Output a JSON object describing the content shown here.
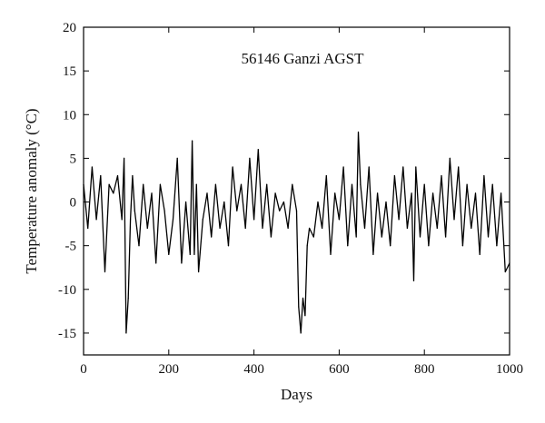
{
  "chart_data": {
    "type": "line",
    "title": "",
    "annotation": "56146 Ganzi AGST",
    "xlabel": "Days",
    "ylabel": "Temperature anomaly (°C)",
    "xlim": [
      0,
      1000
    ],
    "ylim": [
      -17.5,
      20
    ],
    "xticks": [
      0,
      200,
      400,
      600,
      800,
      1000
    ],
    "yticks": [
      -15,
      -10,
      -5,
      0,
      5,
      10,
      15,
      20
    ],
    "grid": false,
    "legend": "none",
    "line_color": "#000000",
    "series": [
      {
        "x": [
          0,
          10,
          20,
          30,
          40,
          50,
          60,
          70,
          80,
          90,
          95,
          100,
          105,
          110,
          115,
          120,
          130,
          140,
          150,
          160,
          170,
          180,
          190,
          200,
          210,
          220,
          230,
          240,
          250,
          255,
          260,
          265,
          270,
          280,
          290,
          300,
          310,
          320,
          330,
          340,
          350,
          360,
          370,
          380,
          390,
          400,
          410,
          420,
          430,
          440,
          450,
          460,
          470,
          480,
          490,
          500,
          505,
          510,
          515,
          520,
          525,
          530,
          540,
          550,
          560,
          570,
          580,
          590,
          600,
          610,
          620,
          630,
          640,
          645,
          650,
          660,
          670,
          680,
          690,
          700,
          710,
          720,
          730,
          740,
          750,
          760,
          770,
          775,
          780,
          790,
          800,
          810,
          820,
          830,
          840,
          850,
          860,
          870,
          880,
          890,
          900,
          910,
          920,
          930,
          940,
          950,
          960,
          970,
          980,
          990,
          1000
        ],
        "y": [
          2,
          -3,
          4,
          -2,
          3,
          -8,
          2,
          1,
          3,
          -2,
          5,
          -15,
          -11,
          -2,
          3,
          -1,
          -5,
          2,
          -3,
          1,
          -7,
          2,
          -1,
          -6,
          -2,
          5,
          -7,
          0,
          -6,
          7,
          -6,
          2,
          -8,
          -2,
          1,
          -4,
          2,
          -3,
          0,
          -5,
          4,
          -1,
          2,
          -3,
          5,
          -2,
          6,
          -3,
          2,
          -4,
          1,
          -1,
          0,
          -3,
          2,
          -1,
          -12,
          -15,
          -11,
          -13,
          -5,
          -3,
          -4,
          0,
          -3,
          3,
          -6,
          1,
          -2,
          4,
          -5,
          2,
          -4,
          8,
          2,
          -3,
          4,
          -6,
          1,
          -4,
          0,
          -5,
          3,
          -2,
          4,
          -3,
          1,
          -9,
          4,
          -4,
          2,
          -5,
          1,
          -3,
          3,
          -4,
          5,
          -2,
          4,
          -5,
          2,
          -3,
          1,
          -6,
          3,
          -4,
          2,
          -5,
          1,
          -8,
          -7
        ]
      }
    ]
  }
}
